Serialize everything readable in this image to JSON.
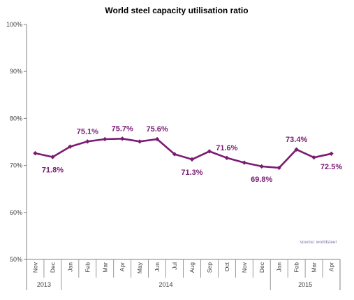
{
  "chart_data": {
    "type": "line",
    "title": "World steel capacity utilisation  ratio",
    "source_note": "source: worldsteel",
    "color": "#7b1c73",
    "source_color": "#7f6fa8",
    "ylim": [
      50,
      100
    ],
    "yticks": [
      50,
      60,
      70,
      80,
      90,
      100
    ],
    "ytick_labels": [
      "50%",
      "60%",
      "70%",
      "80%",
      "90%",
      "100%"
    ],
    "grid": false,
    "categories": [
      "Nov",
      "Dec",
      "Jan",
      "Feb",
      "Mar",
      "Apr",
      "May",
      "Jun",
      "Jul",
      "Aug",
      "Sep",
      "Oct",
      "Nov",
      "Dec",
      "Jan",
      "Feb",
      "Mar",
      "Apr"
    ],
    "years": [
      {
        "label": "2013",
        "start": 0,
        "end": 1
      },
      {
        "label": "2014",
        "start": 2,
        "end": 13
      },
      {
        "label": "2015",
        "start": 14,
        "end": 17
      }
    ],
    "series": [
      {
        "values": [
          72.6,
          71.8,
          74.0,
          75.1,
          75.6,
          75.7,
          75.1,
          75.6,
          72.4,
          71.3,
          73.0,
          71.6,
          70.6,
          69.8,
          69.5,
          73.4,
          71.7,
          72.5
        ]
      }
    ],
    "data_labels": [
      {
        "index": 1,
        "text": "71.8%",
        "pos": "below"
      },
      {
        "index": 3,
        "text": "75.1%",
        "pos": "above"
      },
      {
        "index": 5,
        "text": "75.7%",
        "pos": "above"
      },
      {
        "index": 7,
        "text": "75.6%",
        "pos": "above"
      },
      {
        "index": 9,
        "text": "71.3%",
        "pos": "below"
      },
      {
        "index": 11,
        "text": "71.6%",
        "pos": "above"
      },
      {
        "index": 13,
        "text": "69.8%",
        "pos": "below"
      },
      {
        "index": 15,
        "text": "73.4%",
        "pos": "above"
      },
      {
        "index": 17,
        "text": "72.5%",
        "pos": "below"
      }
    ]
  }
}
